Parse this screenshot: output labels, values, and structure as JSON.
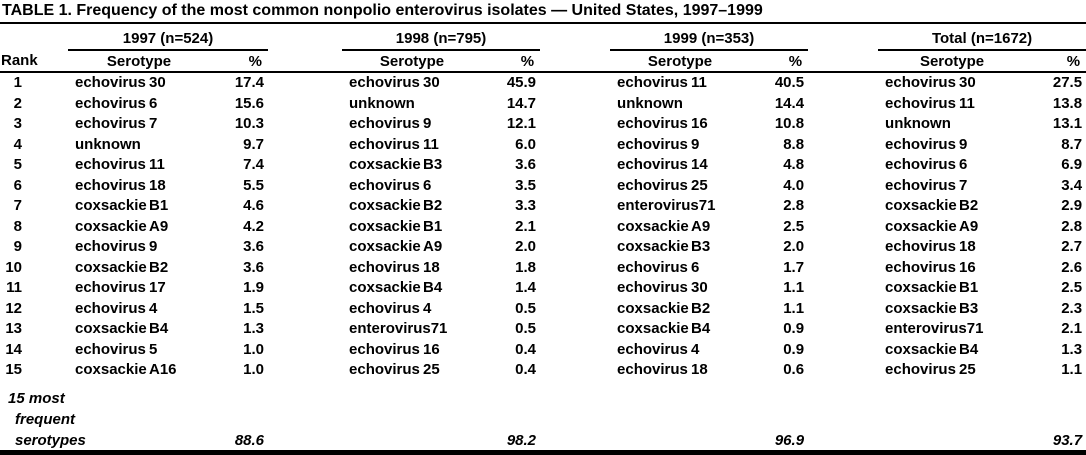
{
  "title": "TABLE 1. Frequency of the most common nonpolio enterovirus isolates — United States, 1997–1999",
  "colors": {
    "text": "#000000",
    "background": "#ffffff",
    "rule": "#000000"
  },
  "columns": {
    "rank": "Rank",
    "serotype": "Serotype",
    "percent": "%"
  },
  "groups": [
    {
      "label": "1997 (n=524)"
    },
    {
      "label": "1998 (n=795)"
    },
    {
      "label": "1999 (n=353)"
    },
    {
      "label": "Total (n=1672)"
    }
  ],
  "rows": [
    {
      "rank": "1",
      "groups": [
        {
          "name": "echovirus",
          "num": "30",
          "pct": "17.4"
        },
        {
          "name": "echovirus",
          "num": "30",
          "pct": "45.9"
        },
        {
          "name": "echovirus",
          "num": "11",
          "pct": "40.5"
        },
        {
          "name": "echovirus",
          "num": "30",
          "pct": "27.5"
        }
      ]
    },
    {
      "rank": "2",
      "groups": [
        {
          "name": "echovirus",
          "num": "6",
          "pct": "15.6"
        },
        {
          "name": "unknown",
          "num": "",
          "pct": "14.7"
        },
        {
          "name": "unknown",
          "num": "",
          "pct": "14.4"
        },
        {
          "name": "echovirus",
          "num": "11",
          "pct": "13.8"
        }
      ]
    },
    {
      "rank": "3",
      "groups": [
        {
          "name": "echovirus",
          "num": "7",
          "pct": "10.3"
        },
        {
          "name": "echovirus",
          "num": "9",
          "pct": "12.1"
        },
        {
          "name": "echovirus",
          "num": "16",
          "pct": "10.8"
        },
        {
          "name": "unknown",
          "num": "",
          "pct": "13.1"
        }
      ]
    },
    {
      "rank": "4",
      "groups": [
        {
          "name": "unknown",
          "num": "",
          "pct": "9.7"
        },
        {
          "name": "echovirus",
          "num": "11",
          "pct": "6.0"
        },
        {
          "name": "echovirus",
          "num": "9",
          "pct": "8.8"
        },
        {
          "name": "echovirus",
          "num": "9",
          "pct": "8.7"
        }
      ]
    },
    {
      "rank": "5",
      "groups": [
        {
          "name": "echovirus",
          "num": "11",
          "pct": "7.4"
        },
        {
          "name": "coxsackie",
          "num": "B3",
          "pct": "3.6"
        },
        {
          "name": "echovirus",
          "num": "14",
          "pct": "4.8"
        },
        {
          "name": "echovirus",
          "num": "6",
          "pct": "6.9"
        }
      ]
    },
    {
      "rank": "6",
      "groups": [
        {
          "name": "echovirus",
          "num": "18",
          "pct": "5.5"
        },
        {
          "name": "echovirus",
          "num": "6",
          "pct": "3.5"
        },
        {
          "name": "echovirus",
          "num": "25",
          "pct": "4.0"
        },
        {
          "name": "echovirus",
          "num": "7",
          "pct": "3.4"
        }
      ]
    },
    {
      "rank": "7",
      "groups": [
        {
          "name": "coxsackie",
          "num": "B1",
          "pct": "4.6"
        },
        {
          "name": "coxsackie",
          "num": "B2",
          "pct": "3.3"
        },
        {
          "name": "enterovirus",
          "num": "71",
          "pct": "2.8"
        },
        {
          "name": "coxsackie",
          "num": "B2",
          "pct": "2.9"
        }
      ]
    },
    {
      "rank": "8",
      "groups": [
        {
          "name": "coxsackie",
          "num": "A9",
          "pct": "4.2"
        },
        {
          "name": "coxsackie",
          "num": "B1",
          "pct": "2.1"
        },
        {
          "name": "coxsackie",
          "num": "A9",
          "pct": "2.5"
        },
        {
          "name": "coxsackie",
          "num": "A9",
          "pct": "2.8"
        }
      ]
    },
    {
      "rank": "9",
      "groups": [
        {
          "name": "echovirus",
          "num": "9",
          "pct": "3.6"
        },
        {
          "name": "coxsackie",
          "num": "A9",
          "pct": "2.0"
        },
        {
          "name": "coxsackie",
          "num": "B3",
          "pct": "2.0"
        },
        {
          "name": "echovirus",
          "num": "18",
          "pct": "2.7"
        }
      ]
    },
    {
      "rank": "10",
      "groups": [
        {
          "name": "coxsackie",
          "num": "B2",
          "pct": "3.6"
        },
        {
          "name": "echovirus",
          "num": "18",
          "pct": "1.8"
        },
        {
          "name": "echovirus",
          "num": "6",
          "pct": "1.7"
        },
        {
          "name": "echovirus",
          "num": "16",
          "pct": "2.6"
        }
      ]
    },
    {
      "rank": "11",
      "groups": [
        {
          "name": "echovirus",
          "num": "17",
          "pct": "1.9"
        },
        {
          "name": "coxsackie",
          "num": "B4",
          "pct": "1.4"
        },
        {
          "name": "echovirus",
          "num": "30",
          "pct": "1.1"
        },
        {
          "name": "coxsackie",
          "num": "B1",
          "pct": "2.5"
        }
      ]
    },
    {
      "rank": "12",
      "groups": [
        {
          "name": "echovirus",
          "num": "4",
          "pct": "1.5"
        },
        {
          "name": "echovirus",
          "num": "4",
          "pct": "0.5"
        },
        {
          "name": "coxsackie",
          "num": "B2",
          "pct": "1.1"
        },
        {
          "name": "coxsackie",
          "num": "B3",
          "pct": "2.3"
        }
      ]
    },
    {
      "rank": "13",
      "groups": [
        {
          "name": "coxsackie",
          "num": "B4",
          "pct": "1.3"
        },
        {
          "name": "enterovirus",
          "num": "71",
          "pct": "0.5"
        },
        {
          "name": "coxsackie",
          "num": "B4",
          "pct": "0.9"
        },
        {
          "name": "enterovirus",
          "num": "71",
          "pct": "2.1"
        }
      ]
    },
    {
      "rank": "14",
      "groups": [
        {
          "name": "echovirus",
          "num": "5",
          "pct": "1.0"
        },
        {
          "name": "echovirus",
          "num": "16",
          "pct": "0.4"
        },
        {
          "name": "echovirus",
          "num": "4",
          "pct": "0.9"
        },
        {
          "name": "coxsackie",
          "num": "B4",
          "pct": "1.3"
        }
      ]
    },
    {
      "rank": "15",
      "groups": [
        {
          "name": "coxsackie",
          "num": "A16",
          "pct": "1.0"
        },
        {
          "name": "echovirus",
          "num": "25",
          "pct": "0.4"
        },
        {
          "name": "echovirus",
          "num": "18",
          "pct": "0.6"
        },
        {
          "name": "echovirus",
          "num": "25",
          "pct": "1.1"
        }
      ]
    }
  ],
  "footer": {
    "lines": [
      "15 most",
      "frequent",
      "serotypes"
    ],
    "values": [
      "88.6",
      "98.2",
      "96.9",
      "93.7"
    ]
  }
}
